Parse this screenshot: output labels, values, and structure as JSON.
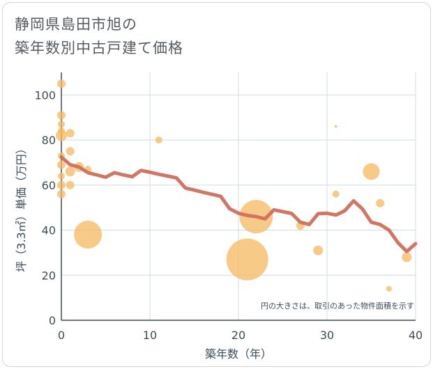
{
  "title_line1": "静岡県島田市旭の",
  "title_line2": "築年数別中古戸建て価格",
  "note": "円の大きさは、取引のあった物件面積を示す",
  "colors": {
    "line": "#d26e5c",
    "bubble": "#f4b95f",
    "grid": "#cfdbe6",
    "axis_text": "#3a4b5c"
  },
  "chart_data": {
    "type": "scatter",
    "title": "静岡県島田市旭の 築年数別中古戸建て価格",
    "xlabel": "築年数（年）",
    "ylabel": "坪（3.3㎡）単価（万円）",
    "xlim": [
      0,
      40
    ],
    "ylim": [
      0,
      110
    ],
    "xticks": [
      0,
      10,
      20,
      30,
      40
    ],
    "yticks": [
      0,
      20,
      40,
      60,
      80,
      100
    ],
    "grid": true,
    "bubbles": [
      {
        "x": 0,
        "y": 105,
        "s": 3
      },
      {
        "x": 0,
        "y": 91,
        "s": 3
      },
      {
        "x": 0,
        "y": 87,
        "s": 2.5
      },
      {
        "x": 0,
        "y": 84,
        "s": 2.5
      },
      {
        "x": 0,
        "y": 82,
        "s": 4
      },
      {
        "x": 0,
        "y": 73,
        "s": 2.5
      },
      {
        "x": 0,
        "y": 69,
        "s": 3
      },
      {
        "x": 0,
        "y": 64,
        "s": 2.5
      },
      {
        "x": 0,
        "y": 60,
        "s": 3
      },
      {
        "x": 0,
        "y": 56,
        "s": 3
      },
      {
        "x": 1,
        "y": 83,
        "s": 3
      },
      {
        "x": 1,
        "y": 75,
        "s": 3
      },
      {
        "x": 1,
        "y": 66,
        "s": 3.5
      },
      {
        "x": 1,
        "y": 60,
        "s": 3
      },
      {
        "x": 2,
        "y": 68,
        "s": 3.5
      },
      {
        "x": 3,
        "y": 67,
        "s": 2.5
      },
      {
        "x": 3,
        "y": 38,
        "s": 10
      },
      {
        "x": 11,
        "y": 80,
        "s": 2.5
      },
      {
        "x": 21,
        "y": 27,
        "s": 15
      },
      {
        "x": 22,
        "y": 46,
        "s": 12
      },
      {
        "x": 27,
        "y": 42,
        "s": 3
      },
      {
        "x": 29,
        "y": 31,
        "s": 3.5
      },
      {
        "x": 31,
        "y": 86,
        "s": 1
      },
      {
        "x": 31,
        "y": 56,
        "s": 2.5
      },
      {
        "x": 35,
        "y": 66,
        "s": 6
      },
      {
        "x": 36,
        "y": 52,
        "s": 3
      },
      {
        "x": 37,
        "y": 14,
        "s": 2
      },
      {
        "x": 39,
        "y": 28,
        "s": 3.5
      }
    ],
    "line": {
      "x": [
        0,
        1,
        2,
        3,
        4,
        5,
        6,
        7,
        8,
        9,
        10,
        11,
        12,
        13,
        14,
        15,
        16,
        17,
        18,
        19,
        20,
        21,
        22,
        23,
        24,
        25,
        26,
        27,
        28,
        29,
        30,
        31,
        32,
        33,
        34,
        35,
        36,
        37,
        38,
        39,
        40
      ],
      "y": [
        72.5,
        69,
        68,
        65.5,
        64.5,
        63.5,
        65.5,
        64.5,
        63.7,
        66.5,
        65.7,
        64.8,
        64,
        63.2,
        58.7,
        57.8,
        56.8,
        55.9,
        55,
        49.5,
        47.5,
        46.5,
        46,
        45,
        49,
        48.2,
        47.4,
        43.5,
        42.5,
        47.3,
        47.5,
        46.7,
        48.6,
        53,
        49.4,
        43.5,
        42.5,
        40,
        34.5,
        30.5,
        34
      ]
    }
  }
}
